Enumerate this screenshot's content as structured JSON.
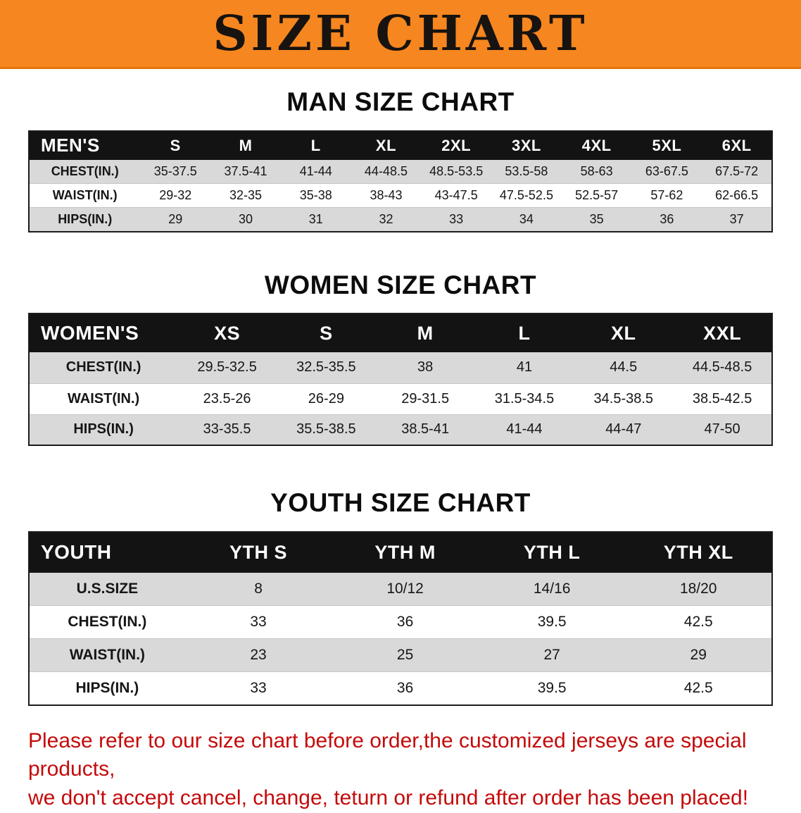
{
  "banner": {
    "title": "SIZE CHART"
  },
  "colors": {
    "banner_bg": "#F6861F",
    "banner_text": "#171310",
    "header_row_bg": "#131313",
    "header_row_text": "#FFFFFF",
    "row_alt_bg": "#D9D9D9",
    "footer_text": "#C40A0A"
  },
  "sections": {
    "men": {
      "title": "MAN SIZE CHART",
      "table": {
        "header": [
          "MEN'S",
          "S",
          "M",
          "L",
          "XL",
          "2XL",
          "3XL",
          "4XL",
          "5XL",
          "6XL"
        ],
        "rows": [
          [
            "CHEST(IN.)",
            "35-37.5",
            "37.5-41",
            "41-44",
            "44-48.5",
            "48.5-53.5",
            "53.5-58",
            "58-63",
            "63-67.5",
            "67.5-72"
          ],
          [
            "WAIST(IN.)",
            "29-32",
            "32-35",
            "35-38",
            "38-43",
            "43-47.5",
            "47.5-52.5",
            "52.5-57",
            "57-62",
            "62-66.5"
          ],
          [
            "HIPS(IN.)",
            "29",
            "30",
            "31",
            "32",
            "33",
            "34",
            "35",
            "36",
            "37"
          ]
        ]
      }
    },
    "women": {
      "title": "WOMEN SIZE CHART",
      "table": {
        "header": [
          "WOMEN'S",
          "XS",
          "S",
          "M",
          "L",
          "XL",
          "XXL"
        ],
        "rows": [
          [
            "CHEST(IN.)",
            "29.5-32.5",
            "32.5-35.5",
            "38",
            "41",
            "44.5",
            "44.5-48.5"
          ],
          [
            "WAIST(IN.)",
            "23.5-26",
            "26-29",
            "29-31.5",
            "31.5-34.5",
            "34.5-38.5",
            "38.5-42.5"
          ],
          [
            "HIPS(IN.)",
            "33-35.5",
            "35.5-38.5",
            "38.5-41",
            "41-44",
            "44-47",
            "47-50"
          ]
        ]
      }
    },
    "youth": {
      "title": "YOUTH SIZE CHART",
      "table": {
        "header": [
          "YOUTH",
          "YTH S",
          "YTH M",
          "YTH L",
          "YTH XL"
        ],
        "rows": [
          [
            "U.S.SIZE",
            "8",
            "10/12",
            "14/16",
            "18/20"
          ],
          [
            "CHEST(IN.)",
            "33",
            "36",
            "39.5",
            "42.5"
          ],
          [
            "WAIST(IN.)",
            "23",
            "25",
            "27",
            "29"
          ],
          [
            "HIPS(IN.)",
            "33",
            "36",
            "39.5",
            "42.5"
          ]
        ]
      }
    }
  },
  "footer": {
    "lines": [
      "Please refer to our size chart before order,the customized jerseys are special products,",
      "we don't accept cancel, change, teturn or refund after order has been placed!"
    ]
  }
}
